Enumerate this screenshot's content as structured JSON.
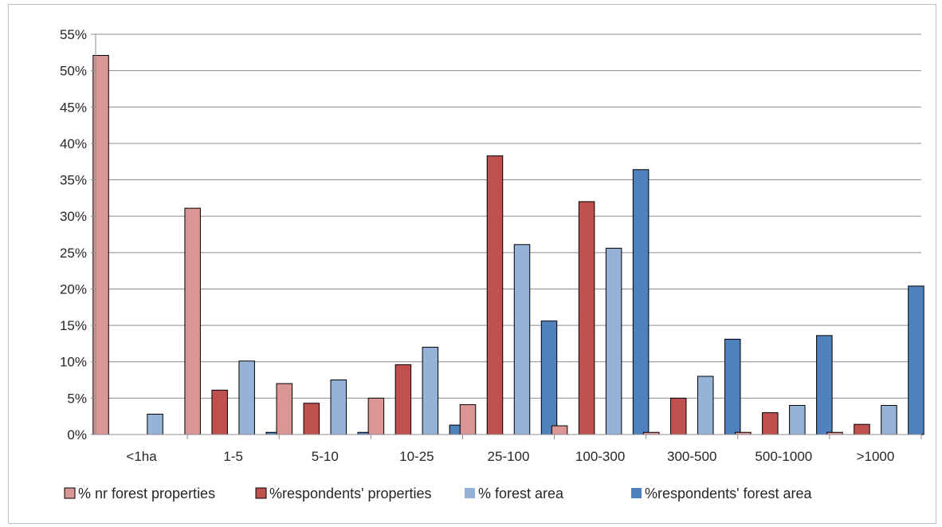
{
  "chart_data": {
    "type": "bar",
    "title": "",
    "xlabel": "",
    "ylabel": "",
    "categories": [
      "<1ha",
      "1-5",
      "5-10",
      "10-25",
      "25-100",
      "100-300",
      "300-500",
      "500-1000",
      ">1000"
    ],
    "ylim": [
      0,
      55
    ],
    "ytick_step": 5,
    "ytick_labels": [
      "0%",
      "5%",
      "10%",
      "15%",
      "20%",
      "25%",
      "30%",
      "35%",
      "40%",
      "45%",
      "50%",
      "55%"
    ],
    "grid": true,
    "legend_position": "bottom",
    "series": [
      {
        "name": "% nr forest properties",
        "color": "#d99694",
        "values": [
          52.1,
          31.1,
          7.0,
          5.0,
          4.1,
          1.2,
          0.3,
          0.3,
          0.3
        ]
      },
      {
        "name": "%respondents' properties",
        "color": "#c0504d",
        "values": [
          0,
          6.1,
          4.3,
          9.6,
          38.3,
          32.0,
          5.0,
          3.0,
          1.4
        ]
      },
      {
        "name": "% forest area",
        "color": "#95b3d7",
        "values": [
          2.8,
          10.1,
          7.5,
          12.0,
          26.1,
          25.6,
          8.0,
          4.0,
          4.0
        ]
      },
      {
        "name": "%respondents' forest area",
        "color": "#4f81bd",
        "values": [
          0,
          0.3,
          0.3,
          1.3,
          15.6,
          36.4,
          13.1,
          13.6,
          20.4
        ]
      }
    ]
  }
}
